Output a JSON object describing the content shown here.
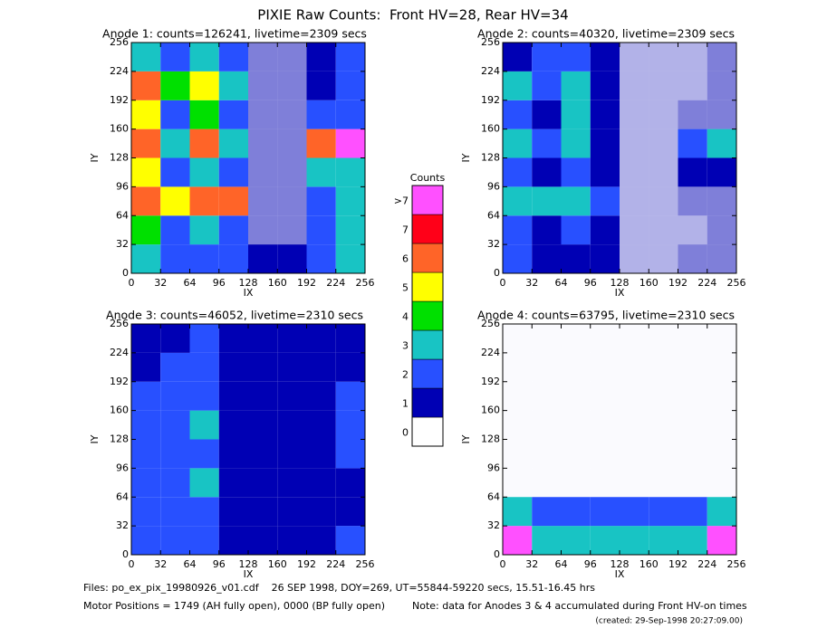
{
  "chart_data": {
    "type": "heatmap",
    "title": "PIXIE Raw Counts:  Front HV=28, Rear HV=34",
    "colorbar": {
      "title": "Counts",
      "ticks": [
        0,
        1,
        2,
        3,
        4,
        5,
        6,
        7,
        {
          "value": 8,
          "label": ">7"
        }
      ],
      "colors": [
        "#ffffff",
        "#0000b4",
        "#2850ff",
        "#18c4c4",
        "#00e000",
        "#ffff00",
        "#ff6428",
        "#ff0018",
        "#ff50ff"
      ]
    },
    "panels": [
      {
        "title": "Anode 1: counts=126241, livetime=2309 secs",
        "xlabel": "IX",
        "ylabel": "IY",
        "xlim": [
          0,
          256
        ],
        "ylim": [
          0,
          256
        ],
        "xticks": [
          0,
          32,
          64,
          96,
          128,
          160,
          192,
          224,
          256
        ],
        "yticks": [
          0,
          32,
          64,
          96,
          128,
          160,
          192,
          224,
          256
        ],
        "x_bins": [
          0,
          32,
          64,
          96,
          128,
          160,
          192,
          224,
          256
        ],
        "y_bins": [
          0,
          32,
          64,
          96,
          128,
          160,
          192,
          224,
          256
        ],
        "values": [
          [
            3,
            2,
            2,
            2,
            1,
            1,
            2,
            3
          ],
          [
            4,
            2,
            3,
            2,
            0.5,
            0.5,
            2,
            3
          ],
          [
            6,
            5,
            6,
            6,
            0.5,
            0.5,
            2,
            3
          ],
          [
            5,
            2,
            3,
            2,
            0.5,
            0.5,
            3,
            3
          ],
          [
            6,
            3,
            6,
            3,
            0.5,
            0.5,
            6,
            8
          ],
          [
            5,
            2,
            4,
            2,
            0.5,
            0.5,
            2,
            2
          ],
          [
            6,
            4,
            5,
            3,
            0.5,
            0.5,
            1,
            2
          ],
          [
            3,
            2,
            3,
            2,
            0.5,
            0.5,
            1,
            2
          ]
        ]
      },
      {
        "title": "Anode 2: counts=40320, livetime=2309 secs",
        "xlabel": "IX",
        "ylabel": "IY",
        "xlim": [
          0,
          256
        ],
        "ylim": [
          0,
          256
        ],
        "xticks": [
          0,
          32,
          64,
          96,
          128,
          160,
          192,
          224,
          256
        ],
        "yticks": [
          0,
          32,
          64,
          96,
          128,
          160,
          192,
          224,
          256
        ],
        "x_bins": [
          0,
          32,
          64,
          96,
          128,
          160,
          192,
          224,
          256
        ],
        "y_bins": [
          0,
          32,
          64,
          96,
          128,
          160,
          192,
          224,
          256
        ],
        "values": [
          [
            2,
            1,
            1,
            1,
            0.3,
            0.3,
            0.5,
            0.5
          ],
          [
            2,
            1,
            2,
            1,
            0.3,
            0.3,
            0.3,
            0.5
          ],
          [
            3,
            3,
            3,
            2,
            0.3,
            0.3,
            0.5,
            0.5
          ],
          [
            2,
            1,
            2,
            1,
            0.3,
            0.3,
            1,
            1
          ],
          [
            3,
            2,
            3,
            1,
            0.3,
            0.3,
            2,
            3
          ],
          [
            2,
            1,
            3,
            1,
            0.3,
            0.3,
            0.5,
            0.5
          ],
          [
            3,
            2,
            3,
            1,
            0.3,
            0.3,
            0.3,
            0.5
          ],
          [
            1,
            2,
            2,
            1,
            0.3,
            0.3,
            0.3,
            0.5
          ]
        ]
      },
      {
        "title": "Anode 3: counts=46052, livetime=2310 secs",
        "xlabel": "IX",
        "ylabel": "IY",
        "xlim": [
          0,
          256
        ],
        "ylim": [
          0,
          256
        ],
        "xticks": [
          0,
          32,
          64,
          96,
          128,
          160,
          192,
          224,
          256
        ],
        "yticks": [
          0,
          32,
          64,
          96,
          128,
          160,
          192,
          224,
          256
        ],
        "x_bins": [
          0,
          32,
          64,
          96,
          128,
          160,
          192,
          224,
          256
        ],
        "y_bins": [
          0,
          32,
          64,
          96,
          128,
          160,
          192,
          224,
          256
        ],
        "values": [
          [
            2,
            2,
            2,
            1,
            1,
            1,
            1,
            2
          ],
          [
            2,
            2,
            2,
            1,
            1,
            1,
            1,
            1
          ],
          [
            2,
            2,
            3,
            1,
            1,
            1,
            1,
            1
          ],
          [
            2,
            2,
            2,
            1,
            1,
            1,
            1,
            2
          ],
          [
            2,
            2,
            3,
            1,
            1,
            1,
            1,
            2
          ],
          [
            2,
            2,
            2,
            1,
            1,
            1,
            1,
            2
          ],
          [
            1,
            2,
            2,
            1,
            1,
            1,
            1,
            1
          ],
          [
            1,
            1,
            2,
            1,
            1,
            1,
            1,
            1
          ]
        ]
      },
      {
        "title": "Anode 4: counts=63795, livetime=2310 secs",
        "xlabel": "IX",
        "ylabel": "IY",
        "xlim": [
          0,
          256
        ],
        "ylim": [
          0,
          256
        ],
        "xticks": [
          0,
          32,
          64,
          96,
          128,
          160,
          192,
          224,
          256
        ],
        "yticks": [
          0,
          32,
          64,
          96,
          128,
          160,
          192,
          224,
          256
        ],
        "x_bins": [
          0,
          32,
          64,
          96,
          128,
          160,
          192,
          224,
          256
        ],
        "y_bins": [
          0,
          32,
          64,
          96,
          128,
          160,
          192,
          224,
          256
        ],
        "values": [
          [
            8,
            3,
            3,
            3,
            3,
            3,
            3,
            8
          ],
          [
            3,
            2,
            2,
            2,
            2,
            2,
            2,
            3
          ],
          [
            0.02,
            0.02,
            0.02,
            0.02,
            0.02,
            0.02,
            0.02,
            0.02
          ],
          [
            0.02,
            0.02,
            0.02,
            0.02,
            0.02,
            0.02,
            0.02,
            0.02
          ],
          [
            0.02,
            0.02,
            0.02,
            0.02,
            0.02,
            0.02,
            0.02,
            0.02
          ],
          [
            0.02,
            0.02,
            0.02,
            0.02,
            0.02,
            0.02,
            0.02,
            0.02
          ],
          [
            0.02,
            0.02,
            0.02,
            0.02,
            0.02,
            0.02,
            0.02,
            0.02
          ],
          [
            0.02,
            0.02,
            0.02,
            0.02,
            0.02,
            0.02,
            0.02,
            0.02
          ]
        ]
      }
    ]
  },
  "footer": {
    "files": "Files: po_ex_pix_19980926_v01.cdf    26 SEP 1998, DOY=269, UT=55844-59220 secs, 15.51-16.45 hrs",
    "motor": "Motor Positions = 1749 (AH fully open), 0000 (BP fully open)",
    "note": "Note: data for Anodes 3 & 4 accumulated during Front HV-on times",
    "created": "(created: 29-Sep-1998 20:27:09.00)"
  }
}
